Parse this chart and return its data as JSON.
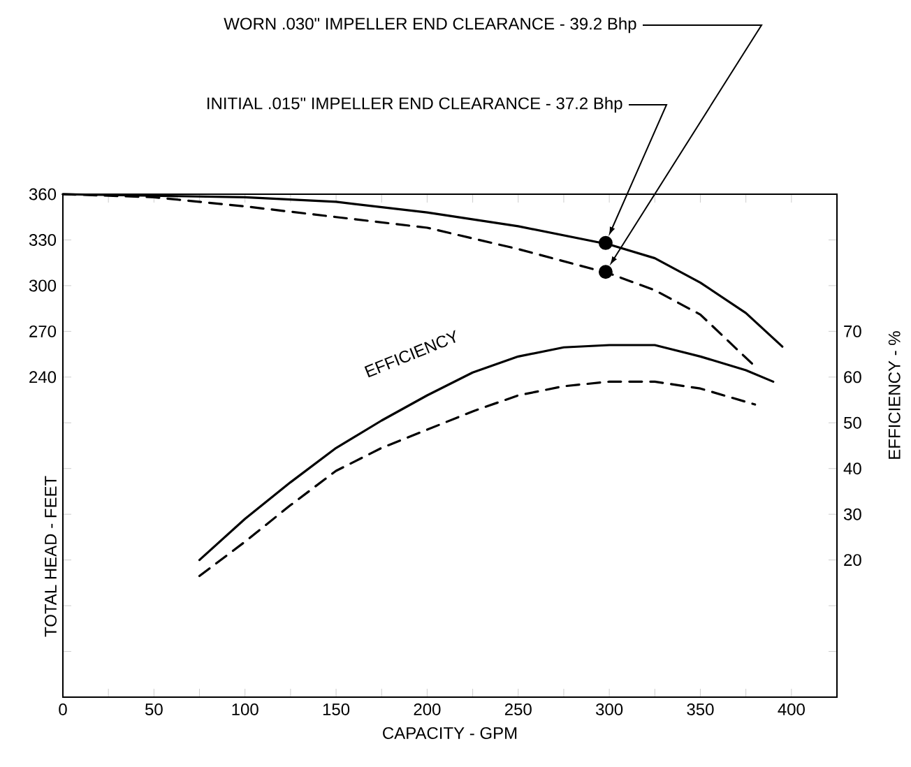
{
  "chart_data": {
    "type": "line",
    "xlabel": "CAPACITY - GPM",
    "ylabel": "TOTAL HEAD - FEET",
    "y2label": "EFFICIENCY - %",
    "xlim": [
      0,
      425
    ],
    "xticks": [
      0,
      {
        "value": 25,
        "label": null
      },
      50,
      {
        "value": 75,
        "label": null
      },
      100,
      {
        "value": 125,
        "label": null
      },
      150,
      {
        "value": 175,
        "label": null
      },
      200,
      {
        "value": 225,
        "label": null
      },
      250,
      {
        "value": 275,
        "label": null
      },
      300,
      {
        "value": 325,
        "label": null
      },
      350,
      {
        "value": 375,
        "label": null
      },
      400
    ],
    "ylim": [
      30,
      360
    ],
    "yticks": [
      {
        "value": 30,
        "label": null
      },
      {
        "value": 60,
        "label": null
      },
      {
        "value": 90,
        "label": null
      },
      {
        "value": 120,
        "label": null
      },
      {
        "value": 150,
        "label": null
      },
      {
        "value": 180,
        "label": null
      },
      {
        "value": 210,
        "label": null
      },
      240,
      270,
      300,
      330,
      360
    ],
    "y2lim": [
      -10,
      100
    ],
    "y2ticks": [
      {
        "value": 0,
        "label": null
      },
      {
        "value": 10,
        "label": null
      },
      20,
      30,
      40,
      50,
      60,
      70,
      {
        "value": 80,
        "label": null
      },
      {
        "value": 90,
        "label": null
      }
    ],
    "series": [
      {
        "color": "#000000",
        "x": [
          0,
          50,
          100,
          150,
          200,
          250,
          300,
          325,
          350,
          375,
          395
        ],
        "values": [
          360,
          359,
          358,
          355,
          348,
          339,
          327,
          318,
          302,
          282,
          260
        ]
      },
      {
        "color": "#000000",
        "line_style": "dashed",
        "x": [
          0,
          50,
          100,
          150,
          200,
          250,
          300,
          325,
          350,
          380
        ],
        "values": [
          360,
          358,
          352,
          345,
          338,
          324,
          308,
          297,
          281,
          247
        ]
      },
      {
        "color": "#000000",
        "axis": "y2",
        "x": [
          75,
          100,
          125,
          150,
          175,
          200,
          225,
          250,
          275,
          300,
          325,
          350,
          375,
          390
        ],
        "values": [
          20,
          29,
          37,
          44.5,
          50.5,
          56,
          61,
          64.5,
          66.5,
          67,
          67,
          64.5,
          61.5,
          59
        ]
      },
      {
        "color": "#000000",
        "axis": "y2",
        "line_style": "dashed",
        "x": [
          75,
          100,
          125,
          150,
          175,
          200,
          225,
          250,
          275,
          300,
          325,
          350,
          380
        ],
        "values": [
          16.5,
          24,
          32,
          39.5,
          44.5,
          48.5,
          52.5,
          56,
          58,
          59,
          59,
          57.5,
          54
        ]
      },
      {
        "type": "scatter",
        "color": "#000000",
        "x": [
          298
        ],
        "values": [
          328
        ]
      },
      {
        "type": "scatter",
        "color": "#000000",
        "x": [
          298
        ],
        "values": [
          309
        ]
      }
    ],
    "annotations": [
      "WORN .030\" IMPELLER END CLEARANCE - 39.2 Bhp",
      "INITIAL .015\" IMPELLER END CLEARANCE - 37.2 Bhp",
      "EFFICIENCY"
    ]
  }
}
